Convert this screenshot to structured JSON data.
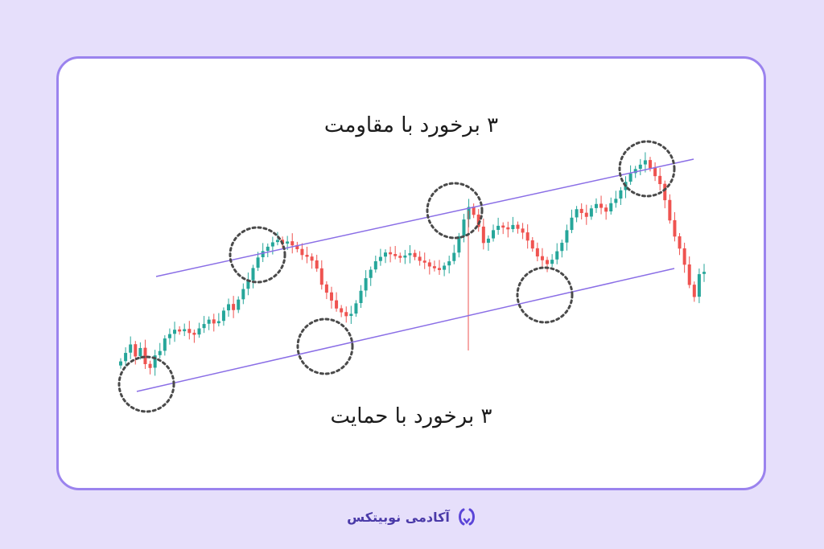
{
  "chart_data": {
    "type": "candlestick",
    "title": "",
    "annotations": {
      "resistance_label": "۳ برخورد با مقاومت",
      "support_label": "۳ برخورد با حمایت"
    },
    "price_range": [
      0,
      100
    ],
    "ohlc_close_path": [
      8,
      12,
      16,
      10,
      14,
      6,
      4,
      10,
      12,
      18,
      20,
      22,
      21,
      22,
      20,
      19,
      22,
      24,
      26,
      24,
      25,
      30,
      33,
      30,
      35,
      40,
      44,
      50,
      55,
      58,
      60,
      62,
      63,
      61,
      62,
      60,
      58,
      55,
      54,
      52,
      48,
      40,
      36,
      32,
      28,
      26,
      24,
      25,
      30,
      36,
      42,
      46,
      50,
      52,
      54,
      53,
      52,
      51,
      52,
      53,
      51,
      49,
      48,
      46,
      45,
      44,
      46,
      48,
      52,
      60,
      68,
      74,
      70,
      64,
      56,
      58,
      62,
      64,
      63,
      62,
      64,
      62,
      60,
      56,
      52,
      48,
      46,
      44,
      46,
      50,
      54,
      60,
      66,
      70,
      68,
      66,
      70,
      72,
      70,
      68,
      72,
      74,
      78,
      82,
      86,
      88,
      90,
      92,
      88,
      84,
      80,
      72,
      62,
      54,
      48,
      40,
      30,
      24,
      35,
      36
    ],
    "channel": {
      "resistance_line": "upper trendline",
      "support_line": "lower trendline"
    },
    "touch_points": {
      "resistance": 3,
      "support": 3
    },
    "colors": {
      "bullish": "#26a69a",
      "bearish": "#ef5350",
      "trendline": "#8a6ee6",
      "highlight_circle": "#4a4a4a"
    }
  },
  "brand": {
    "name": "آکادمی نوبیتکس",
    "logo_icon": "nobitex-logo-icon"
  }
}
